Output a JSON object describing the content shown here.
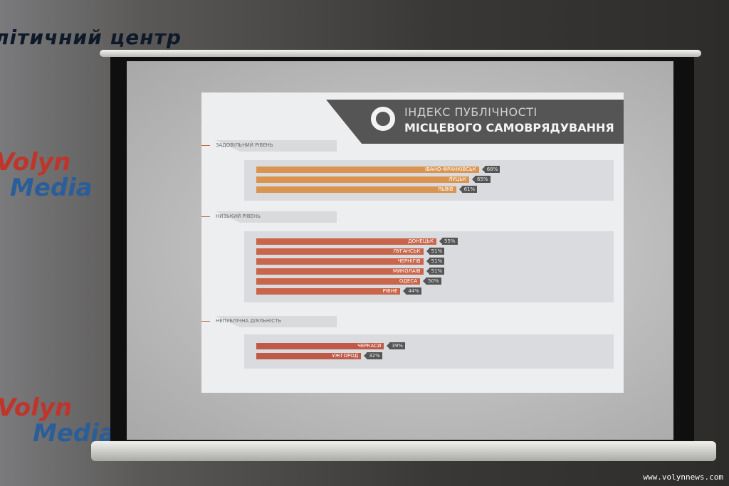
{
  "wall": {
    "banner_text": "літичний центр",
    "logo_top": [
      "Volyn",
      "Media"
    ],
    "logo_bottom": [
      "Volyn",
      "Media"
    ]
  },
  "watermark": "www.volynnews.com",
  "chart_data": {
    "type": "bar",
    "orientation": "horizontal",
    "title_line1": "ІНДЕКС ПУБЛІЧНОСТІ",
    "title_line2": "МІСЦЕВОГО САМОВРЯДУВАННЯ",
    "unit": "%",
    "groups": [
      {
        "label": "ЗАДОВІЛЬНИЙ РІВЕНЬ",
        "color": "#d99550",
        "items": [
          {
            "name": "ІВАНО-ФРАНКІВСЬК",
            "value": 68
          },
          {
            "name": "ЛУЦЬК",
            "value": 65
          },
          {
            "name": "ЛЬВІВ",
            "value": 61
          }
        ]
      },
      {
        "label": "НИЗЬКИЙ РІВЕНЬ",
        "color": "#c8654a",
        "items": [
          {
            "name": "ДОНЕЦЬК",
            "value": 55
          },
          {
            "name": "ЛУГАНСЬК",
            "value": 51
          },
          {
            "name": "ЧЕРНІГІВ",
            "value": 51
          },
          {
            "name": "МИКОЛАЇВ",
            "value": 51
          },
          {
            "name": "ОДЕСА",
            "value": 50
          },
          {
            "name": "РІВНЕ",
            "value": 44
          }
        ]
      },
      {
        "label": "НЕПУБЛІЧНА ДІЯЛЬНІСТЬ",
        "color": "#bf5a48",
        "items": [
          {
            "name": "ЧЕРКАСИ",
            "value": 39
          },
          {
            "name": "УЖГОРОД",
            "value": 32
          }
        ]
      }
    ]
  }
}
